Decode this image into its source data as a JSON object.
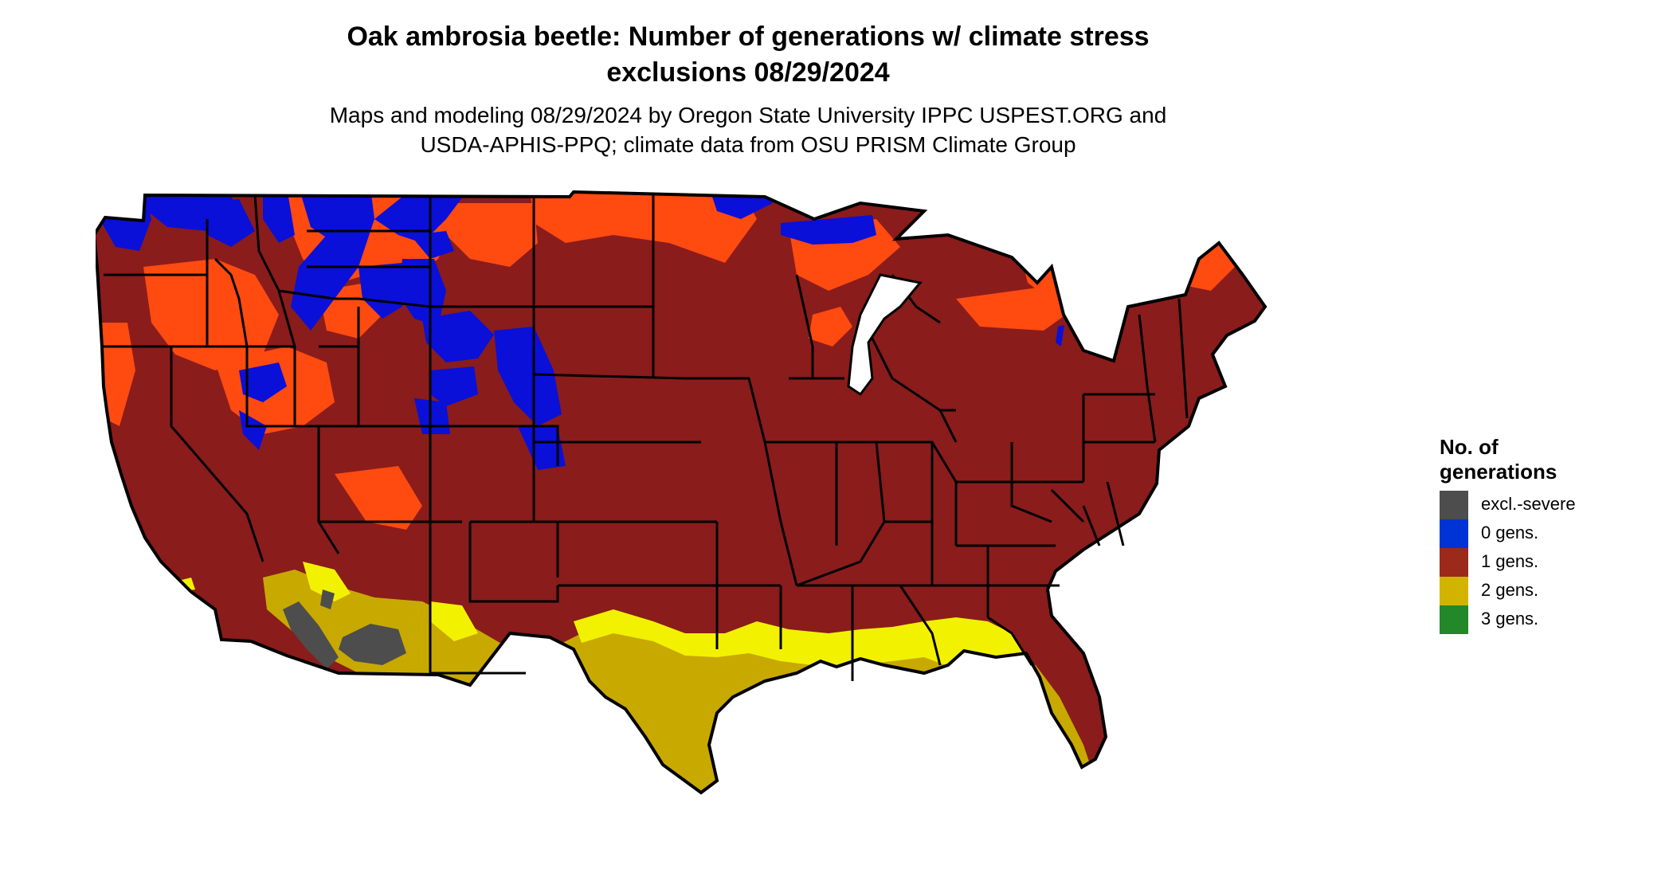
{
  "title": {
    "line1": "Oak ambrosia beetle: Number of generations w/ climate stress",
    "line2": "exclusions 08/29/2024"
  },
  "subtitle": {
    "line1": "Maps and modeling 08/29/2024 by Oregon State University IPPC USPEST.ORG and",
    "line2": "USDA-APHIS-PPQ; climate data from OSU PRISM Climate Group"
  },
  "legend": {
    "title_line1": "No. of",
    "title_line2": "generations",
    "items": [
      {
        "label": "excl.-severe",
        "color": "#4d4d4d"
      },
      {
        "label": "0 gens.",
        "color": "#0033d6"
      },
      {
        "label": "1 gens.",
        "color": "#9b2a1a"
      },
      {
        "label": "2 gens.",
        "color": "#d2b400"
      },
      {
        "label": "3 gens.",
        "color": "#22882a"
      }
    ]
  },
  "colors": {
    "gen1_dark": "#8a1c1c",
    "gen1_light": "#ff4a10",
    "gen0": "#0a10d8",
    "gen2": "#c8a900",
    "gen2_bright": "#f2f200",
    "excluded": "#4d4d4d",
    "gen3": "#36b836",
    "borders": "#000000"
  }
}
